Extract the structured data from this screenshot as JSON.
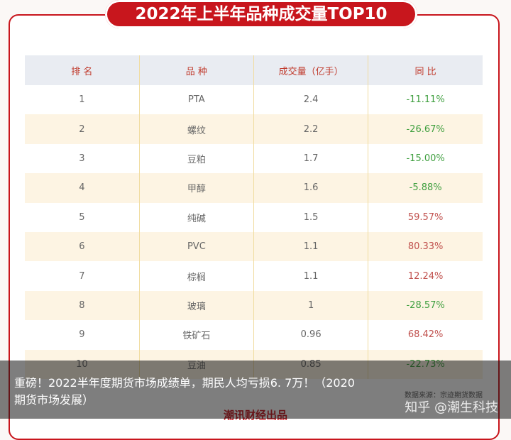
{
  "header": {
    "title": "2022年上半年品种成交量TOP10"
  },
  "table": {
    "columns": [
      "排 名",
      "品 种",
      "成交量（亿手）",
      "同 比"
    ],
    "rows": [
      [
        "1",
        "PTA",
        "2.4",
        "-11.11%"
      ],
      [
        "2",
        "螺纹",
        "2.2",
        "-26.67%"
      ],
      [
        "3",
        "豆粕",
        "1.7",
        "-15.00%"
      ],
      [
        "4",
        "甲醇",
        "1.6",
        "-5.88%"
      ],
      [
        "5",
        "纯碱",
        "1.5",
        "59.57%"
      ],
      [
        "6",
        "PVC",
        "1.1",
        "80.33%"
      ],
      [
        "7",
        "棕榈",
        "1.1",
        "12.24%"
      ],
      [
        "8",
        "玻璃",
        "1",
        "-28.57%"
      ],
      [
        "9",
        "铁矿石",
        "0.96",
        "68.42%"
      ],
      [
        "10",
        "豆油",
        "0.85",
        "-22.73%"
      ]
    ]
  },
  "source": "数据来源：宗迹期货数据",
  "logo": "潮讯财经出品",
  "caption": [
    "重磅！2022半年度期货市场成绩单，期民人均亏损6. 7万！（2020",
    "期货市场发展）"
  ],
  "watermark": "知乎 @潮生科技"
}
